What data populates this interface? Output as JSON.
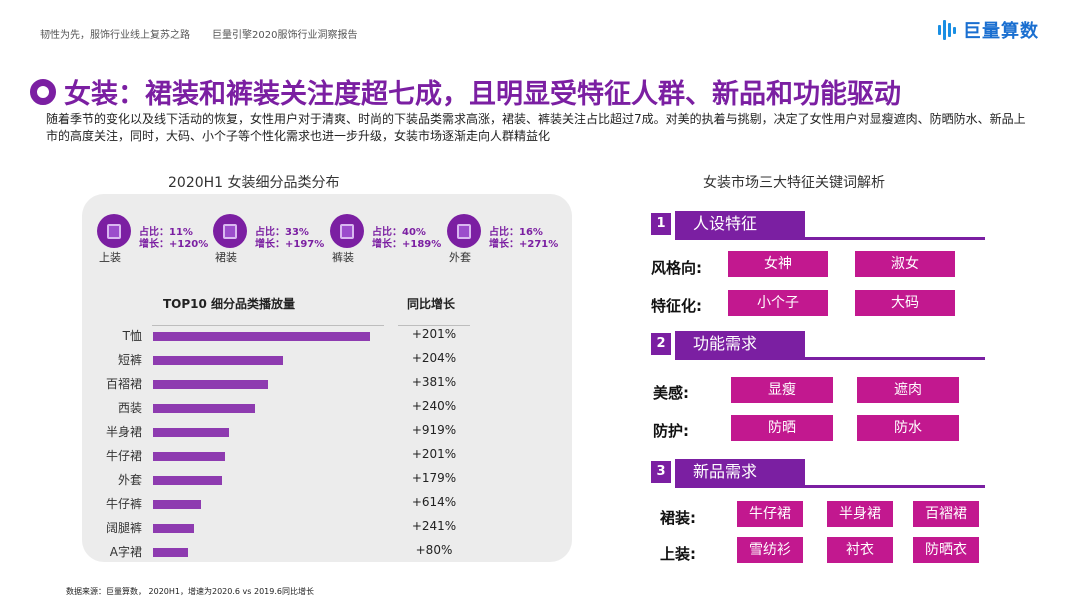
{
  "header": {
    "left_text": "韧性为先，服饰行业线上复苏之路",
    "mid_text": "巨量引擎2020服饰行业洞察报告",
    "logo_text": "巨量算数"
  },
  "title": "女装：裙装和裤装关注度超七成，且明显受特征人群、新品和功能驱动",
  "intro": "随着季节的变化以及线下活动的恢复，女性用户对于清爽、时尚的下装品类需求高涨，裙装、裤装关注占比超过7成。对美的执着与挑剔，决定了女性用户对显瘦遮肉、防晒防水、新品上市的高度关注，同时，大码、小个子等个性化需求也进一步升级，女装市场逐渐走向人群精益化",
  "left": {
    "title": "2020H1 女装细分品类分布",
    "categories": [
      {
        "name": "上装",
        "share": "占比：11%",
        "growth": "增长：+120%"
      },
      {
        "name": "裙装",
        "share": "占比：33%",
        "growth": "增长：+197%"
      },
      {
        "name": "裤装",
        "share": "占比：40%",
        "growth": "增长：+189%"
      },
      {
        "name": "外套",
        "share": "占比：16%",
        "growth": "增长：+271%"
      }
    ],
    "top10_title": "TOP10 细分品类播放量",
    "growth_title": "同比增长"
  },
  "chart_data": {
    "type": "bar",
    "orientation": "horizontal",
    "title": "TOP10 细分品类播放量",
    "categories": [
      "T恤",
      "短裤",
      "百褶裙",
      "西装",
      "半身裙",
      "牛仔裙",
      "外套",
      "牛仔裤",
      "阔腿裤",
      "A字裙"
    ],
    "values": [
      100,
      60,
      53,
      47,
      35,
      33,
      32,
      22,
      19,
      16
    ],
    "growth_labels": [
      "+201%",
      "+204%",
      "+381%",
      "+240%",
      "+919%",
      "+201%",
      "+179%",
      "+614%",
      "+241%",
      "+80%"
    ]
  },
  "source": "数据来源：巨量算数， 2020H1，增速为2020.6 vs 2019.6同比增长",
  "right": {
    "title": "女装市场三大特征关键词解析",
    "sections": [
      {
        "num": "1",
        "label": "人设特征",
        "rows": [
          {
            "label": "风格向:",
            "tags": [
              "女神",
              "淑女"
            ]
          },
          {
            "label": "特征化:",
            "tags": [
              "小个子",
              "大码"
            ]
          }
        ]
      },
      {
        "num": "2",
        "label": "功能需求",
        "rows": [
          {
            "label": "美感:",
            "tags": [
              "显瘦",
              "遮肉"
            ]
          },
          {
            "label": "防护:",
            "tags": [
              "防晒",
              "防水"
            ]
          }
        ]
      },
      {
        "num": "3",
        "label": "新品需求",
        "rows": [
          {
            "label": "裙装:",
            "tags": [
              "牛仔裙",
              "半身裙",
              "百褶裙"
            ]
          },
          {
            "label": "上装:",
            "tags": [
              "雪纺衫",
              "衬衣",
              "防晒衣"
            ]
          }
        ]
      }
    ]
  }
}
